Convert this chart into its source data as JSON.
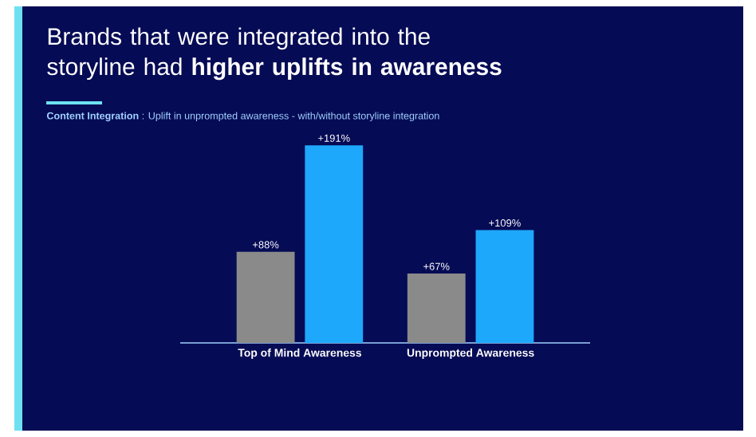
{
  "chart_data": {
    "type": "bar",
    "title": "Brands that were integrated into the storyline had **higher uplifts in awareness**",
    "subtitle": "**Content Integration** : Uplift in unprompted awareness - with/without storyline integration",
    "categories": [
      "Top of Mind Awareness",
      "Unprompted Awareness"
    ],
    "series": [
      {
        "color": "#8a8a8a",
        "values": [
          88,
          67
        ],
        "value_labels": [
          "+88%",
          "+67%"
        ]
      },
      {
        "color": "#1ea8fc",
        "values": [
          191,
          109
        ],
        "value_labels": [
          "+191%",
          "+109%"
        ]
      }
    ]
  }
}
